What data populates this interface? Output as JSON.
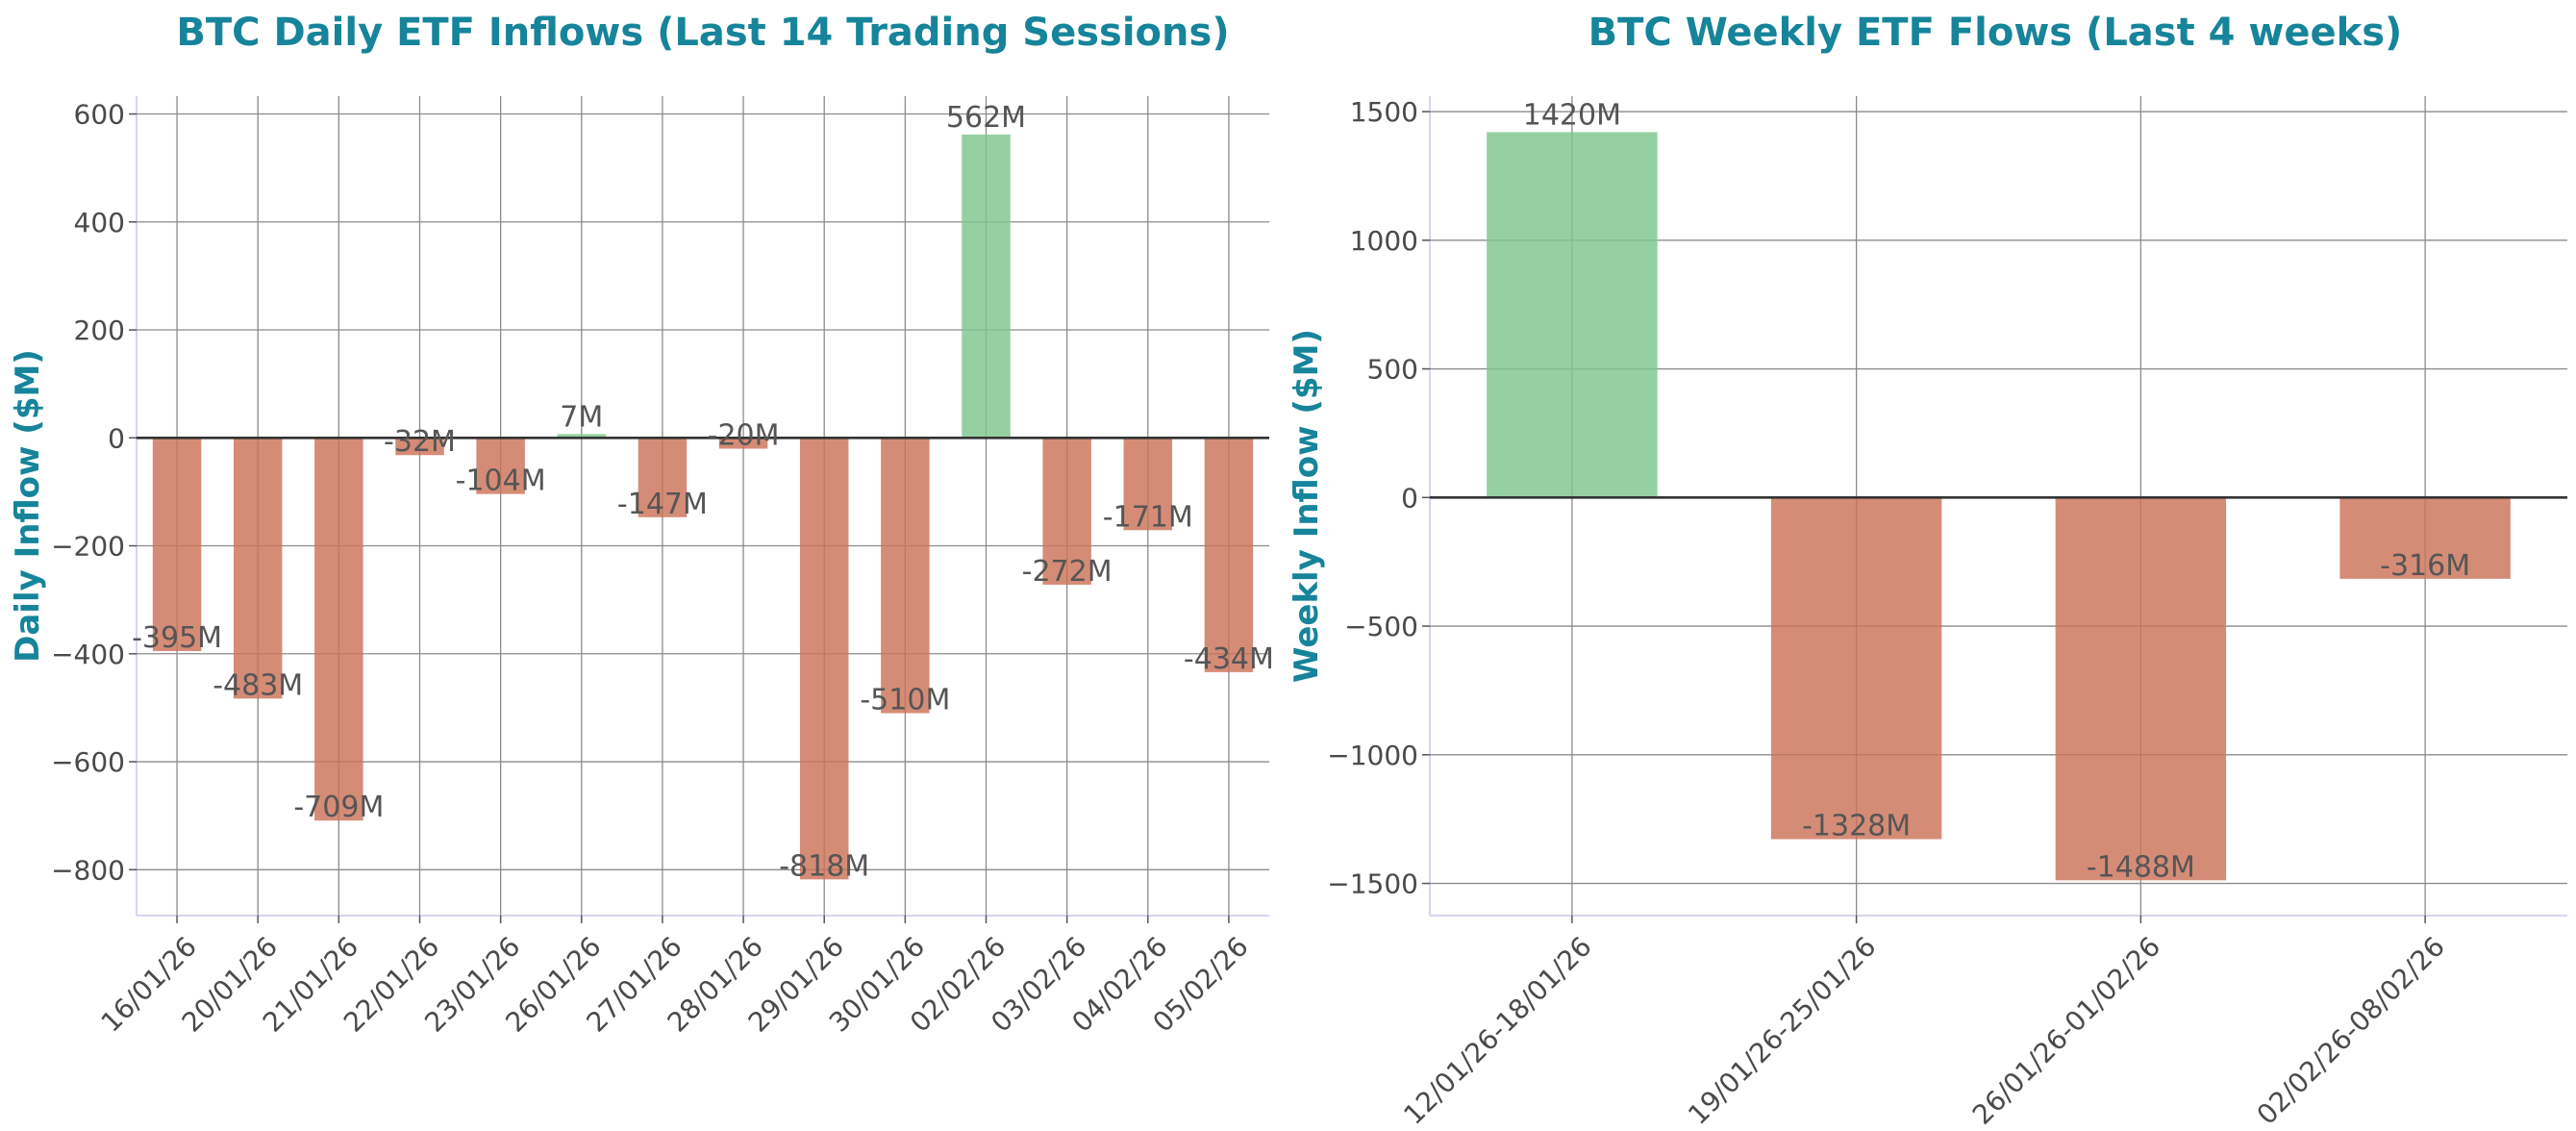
{
  "colors": {
    "positive": "#7cc68c",
    "negative": "#cc7358",
    "accent": "#16849a"
  },
  "chart_data": [
    {
      "type": "bar",
      "title": "BTC Daily ETF Inflows (Last 14 Trading Sessions)",
      "xlabel": "",
      "ylabel": "Daily Inflow ($M)",
      "categories": [
        "16/01/26",
        "20/01/26",
        "21/01/26",
        "22/01/26",
        "23/01/26",
        "26/01/26",
        "27/01/26",
        "28/01/26",
        "29/01/26",
        "30/01/26",
        "02/02/26",
        "03/02/26",
        "04/02/26",
        "05/02/26"
      ],
      "values": [
        -395,
        -483,
        -709,
        -32,
        -104,
        7,
        -147,
        -20,
        -818,
        -510,
        562,
        -272,
        -171,
        -434
      ],
      "data_labels": [
        "-395M",
        "-483M",
        "-709M",
        "-32M",
        "-104M",
        "7M",
        "-147M",
        "-20M",
        "-818M",
        "-510M",
        "562M",
        "-272M",
        "-171M",
        "-434M"
      ],
      "yticks": [
        -800,
        -600,
        -400,
        -200,
        0,
        200,
        400,
        600
      ],
      "ytick_labels": [
        "−800",
        "−600",
        "−400",
        "−200",
        "0",
        "200",
        "400",
        "600"
      ],
      "ylim": [
        -885,
        633
      ],
      "grid": true
    },
    {
      "type": "bar",
      "title": "BTC Weekly ETF Flows (Last 4 weeks)",
      "xlabel": "",
      "ylabel": "Weekly Inflow ($M)",
      "categories": [
        "12/01/26-18/01/26",
        "19/01/26-25/01/26",
        "26/01/26-01/02/26",
        "02/02/26-08/02/26"
      ],
      "values": [
        1420,
        -1328,
        -1488,
        -316
      ],
      "data_labels": [
        "1420M",
        "-1328M",
        "-1488M",
        "-316M"
      ],
      "yticks": [
        -1500,
        -1000,
        -500,
        0,
        500,
        1000,
        1500
      ],
      "ytick_labels": [
        "−1500",
        "−1000",
        "−500",
        "0",
        "500",
        "1000",
        "1500"
      ],
      "ylim": [
        -1625,
        1560
      ],
      "grid": true
    }
  ]
}
